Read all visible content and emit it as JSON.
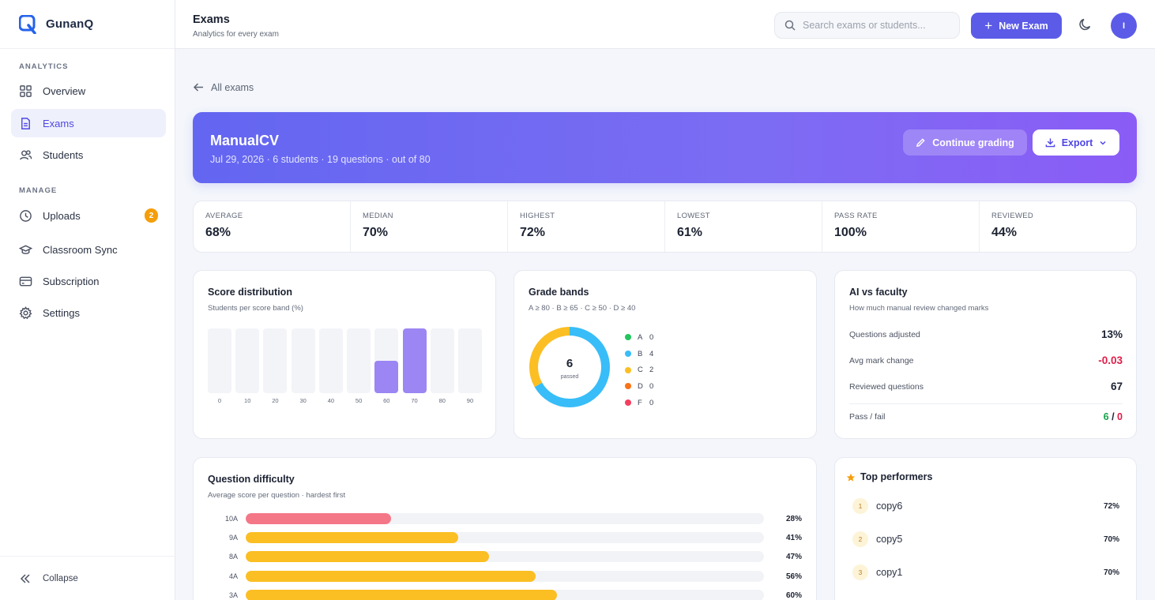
{
  "app": {
    "name": "GunanQ"
  },
  "sidebar": {
    "sections": [
      "ANALYTICS",
      "MANAGE"
    ],
    "items": [
      {
        "label": "Overview",
        "icon": "grid-icon"
      },
      {
        "label": "Exams",
        "icon": "document-icon",
        "active": true
      },
      {
        "label": "Students",
        "icon": "users-icon"
      },
      {
        "label": "Uploads",
        "icon": "clock-icon",
        "badge": "2"
      },
      {
        "label": "Classroom Sync",
        "icon": "graduation-cap-icon"
      },
      {
        "label": "Subscription",
        "icon": "credit-card-icon"
      },
      {
        "label": "Settings",
        "icon": "gear-icon"
      }
    ],
    "collapse_label": "Collapse"
  },
  "header": {
    "title": "Exams",
    "subtitle": "Analytics for every exam",
    "search_placeholder": "Search exams or students...",
    "new_exam_label": "New Exam",
    "avatar_initial": "I"
  },
  "back_label": "All exams",
  "exam": {
    "title": "ManualCV",
    "meta": "Jul 29, 2026 · 6 students · 19 questions · out of 80",
    "continue_label": "Continue grading",
    "export_label": "Export"
  },
  "stats": [
    {
      "label": "AVERAGE",
      "value": "68%"
    },
    {
      "label": "MEDIAN",
      "value": "70%"
    },
    {
      "label": "HIGHEST",
      "value": "72%"
    },
    {
      "label": "LOWEST",
      "value": "61%"
    },
    {
      "label": "PASS RATE",
      "value": "100%"
    },
    {
      "label": "REVIEWED",
      "value": "44%"
    }
  ],
  "score_distribution": {
    "title": "Score distribution",
    "subtitle": "Students per score band (%)",
    "chart_data": {
      "type": "bar",
      "categories": [
        "0",
        "10",
        "20",
        "30",
        "40",
        "50",
        "60",
        "70",
        "80",
        "90"
      ],
      "values": [
        0,
        0,
        0,
        0,
        0,
        0,
        2,
        4,
        0,
        0
      ],
      "ylim": [
        0,
        4
      ]
    }
  },
  "grade_bands": {
    "title": "Grade bands",
    "subtitle": "A ≥ 80 · B ≥ 65 · C ≥ 50 · D ≥ 40",
    "center_value": "6",
    "center_label": "passed",
    "chart_data": {
      "type": "pie",
      "categories": [
        "A",
        "B",
        "C",
        "D",
        "F"
      ],
      "values": [
        0,
        4,
        2,
        0,
        0
      ],
      "colors": [
        "#22c55e",
        "#38bdf8",
        "#fbbf24",
        "#f97316",
        "#f43f5e"
      ]
    }
  },
  "ai_vs_faculty": {
    "title": "AI vs faculty",
    "subtitle": "How much manual review changed marks",
    "rows": [
      {
        "label": "Questions adjusted",
        "value": "13%"
      },
      {
        "label": "Avg mark change",
        "value": "-0.03"
      },
      {
        "label": "Reviewed questions",
        "value": "67"
      }
    ],
    "pass_fail_label": "Pass / fail",
    "pass_value": "6",
    "separator": "/",
    "fail_value": "0"
  },
  "question_difficulty": {
    "title": "Question difficulty",
    "subtitle": "Average score per question · hardest first",
    "chart_data": {
      "type": "bar",
      "categories": [
        "10A",
        "9A",
        "8A",
        "4A",
        "3A"
      ],
      "values": [
        28,
        41,
        47,
        56,
        60
      ],
      "value_labels": [
        "28%",
        "41%",
        "47%",
        "56%",
        "60%"
      ],
      "ylim": [
        0,
        100
      ]
    }
  },
  "top_performers": {
    "title": "Top performers",
    "rows": [
      {
        "rank": "1",
        "name": "copy6",
        "score": "72%"
      },
      {
        "rank": "2",
        "name": "copy5",
        "score": "70%"
      },
      {
        "rank": "3",
        "name": "copy1",
        "score": "70%"
      }
    ]
  },
  "colors": {
    "accent": "#5b5be8",
    "danger": "#e11d48",
    "success": "#16a34a",
    "bar_violet": "#9b86f3",
    "bar_red": "#f47787",
    "bar_amber": "#fbbf24"
  }
}
